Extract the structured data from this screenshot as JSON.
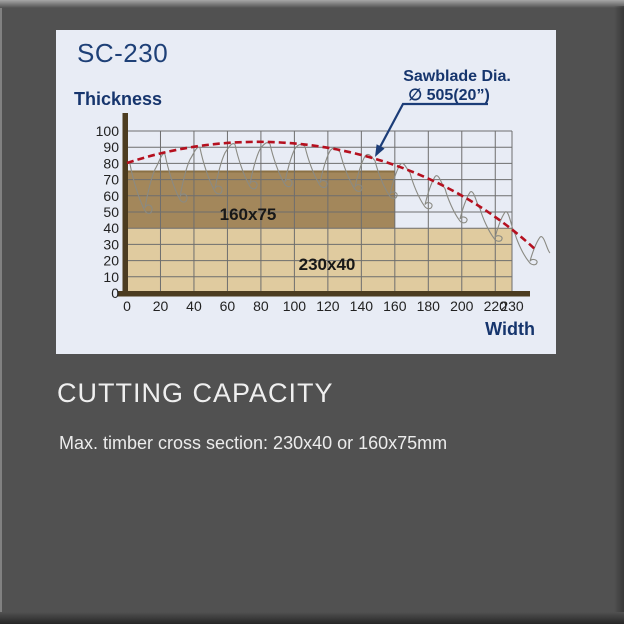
{
  "frame": {
    "background": "#515151"
  },
  "panel": {
    "background": "#e8ecf5",
    "model": "SC-230",
    "thickness_label": "Thickness",
    "width_label": "Width",
    "annotation": {
      "line1": "Sawblade Dia.",
      "line2": "∅ 505(20”)"
    }
  },
  "chart_data": {
    "type": "area",
    "title": "SC-230 cutting capacity diagram",
    "xlabel": "Width",
    "ylabel": "Thickness",
    "xlim": [
      0,
      230
    ],
    "ylim": [
      0,
      100
    ],
    "grid": true,
    "x_ticks": [
      0,
      20,
      40,
      60,
      80,
      100,
      120,
      140,
      160,
      180,
      200,
      220,
      230
    ],
    "y_ticks": [
      0,
      10,
      20,
      30,
      40,
      50,
      60,
      70,
      80,
      90,
      100
    ],
    "regions": [
      {
        "label": "160x75",
        "max_width": 160,
        "max_thickness": 75,
        "color": "#a3875b"
      },
      {
        "label": "230x40",
        "max_width": 230,
        "max_thickness": 40,
        "color": "#e0cb9f"
      }
    ],
    "sawblade_curve": {
      "label": "Sawblade Dia. ∅ 505(20”)",
      "diameter_mm": 505,
      "diameter_in": "20”",
      "style": "dashed",
      "color": "#b5101f",
      "points": [
        [
          0,
          80
        ],
        [
          40,
          90
        ],
        [
          78,
          93
        ],
        [
          120,
          90
        ],
        [
          160,
          79
        ],
        [
          200,
          60
        ],
        [
          230,
          39
        ],
        [
          245,
          26
        ]
      ]
    }
  },
  "caption": {
    "title": "CUTTING CAPACITY",
    "subtitle": "Max. timber cross section: 230x40 or 160x75mm"
  }
}
